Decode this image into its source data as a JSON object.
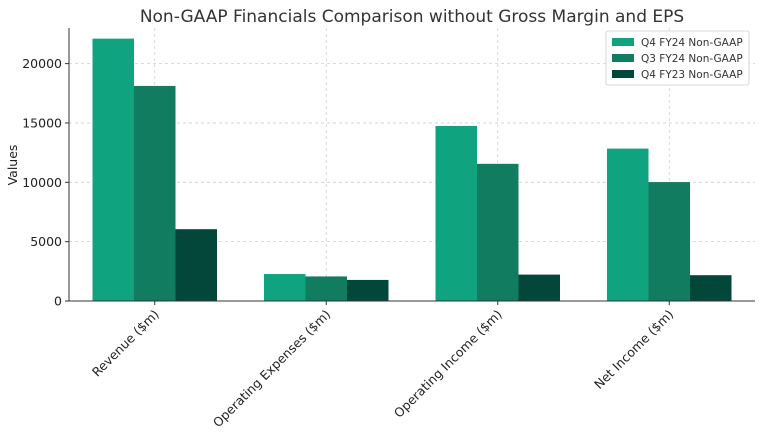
{
  "chart_data": {
    "type": "bar",
    "title": "Non-GAAP Financials Comparison without Gross Margin and EPS",
    "xlabel": "",
    "ylabel": "Values",
    "categories": [
      "Revenue ($m)",
      "Operating Expenses ($m)",
      "Operating Income ($m)",
      "Net Income ($m)"
    ],
    "series": [
      {
        "name": "Q4 FY24 Non-GAAP",
        "color": "#10a37f",
        "values": [
          22103,
          2271,
          14749,
          12839
        ]
      },
      {
        "name": "Q3 FY24 Non-GAAP",
        "color": "#127c60",
        "values": [
          18120,
          2070,
          11557,
          10020
        ]
      },
      {
        "name": "Q4 FY23 Non-GAAP",
        "color": "#03473a",
        "values": [
          6051,
          1775,
          2224,
          2174
        ]
      }
    ],
    "ylim": [
      0,
      23000
    ],
    "yticks": [
      0,
      5000,
      10000,
      15000,
      20000
    ],
    "grid": true,
    "legend_position": "top-right"
  }
}
